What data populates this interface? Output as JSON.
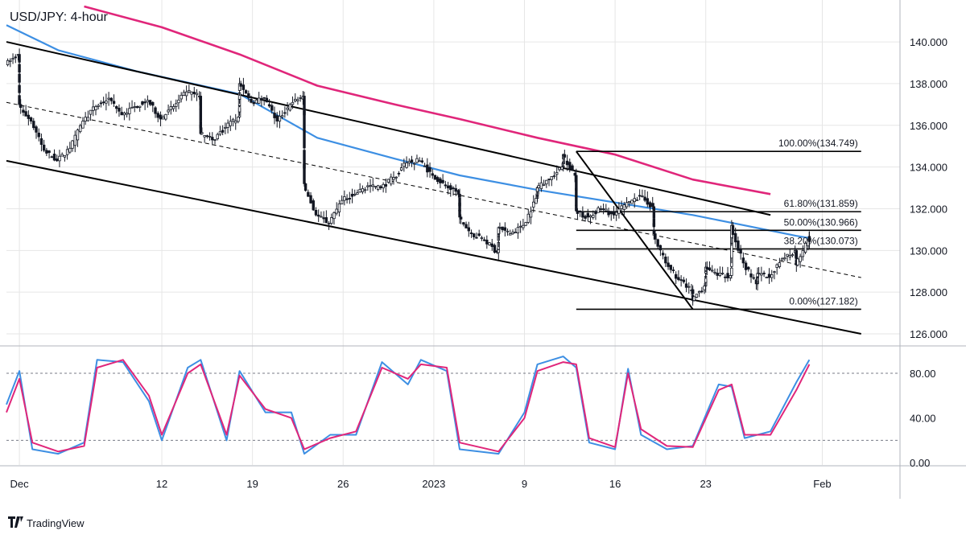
{
  "header": {
    "title": "USD/JPY: 4-hour"
  },
  "branding": {
    "name": "TradingView",
    "logo_icon": "tradingview-logo-icon"
  },
  "colors": {
    "candle": "#131722",
    "ma_fast": "#3d8fe3",
    "ma_slow": "#e0267a",
    "stoch_k": "#3d8fe3",
    "stoch_d": "#e0267a",
    "channel": "#000000",
    "grid": "#e6e6e6"
  },
  "chart_data": [
    {
      "type": "candlestick",
      "title": "USD/JPY: 4-hour",
      "x_axis": {
        "tick_labels": [
          "Dec",
          "12",
          "19",
          "26",
          "2023",
          "9",
          "16",
          "23",
          "Feb"
        ],
        "tick_dates": [
          "2022-12-01",
          "2022-12-12",
          "2022-12-19",
          "2022-12-26",
          "2023-01-02",
          "2023-01-09",
          "2023-01-16",
          "2023-01-23",
          "2023-02-01"
        ],
        "range": [
          "2022-11-30",
          "2023-02-07"
        ]
      },
      "y_axis": {
        "tick_labels": [
          "126.000",
          "128.000",
          "130.000",
          "132.000",
          "134.000",
          "136.000",
          "138.000",
          "140.000"
        ],
        "ylim": [
          125.5,
          141.7
        ]
      },
      "price_path": [
        [
          "2022-11-30",
          138.9
        ],
        [
          "2022-12-01",
          139.4
        ],
        [
          "2022-12-01",
          137.0
        ],
        [
          "2022-12-02",
          136.2
        ],
        [
          "2022-12-03",
          134.8
        ],
        [
          "2022-12-04",
          134.3
        ],
        [
          "2022-12-05",
          134.9
        ],
        [
          "2022-12-06",
          136.2
        ],
        [
          "2022-12-07",
          136.9
        ],
        [
          "2022-12-08",
          137.3
        ],
        [
          "2022-12-09",
          136.5
        ],
        [
          "2022-12-10",
          136.9
        ],
        [
          "2022-12-11",
          137.2
        ],
        [
          "2022-12-12",
          136.3
        ],
        [
          "2022-12-13",
          136.9
        ],
        [
          "2022-12-14",
          137.6
        ],
        [
          "2022-12-15",
          137.4
        ],
        [
          "2022-12-15",
          135.6
        ],
        [
          "2022-12-16",
          135.3
        ],
        [
          "2022-12-17",
          135.9
        ],
        [
          "2022-12-18",
          136.4
        ],
        [
          "2022-12-18",
          138.0
        ],
        [
          "2022-12-19",
          137.1
        ],
        [
          "2022-12-20",
          137.3
        ],
        [
          "2022-12-21",
          136.2
        ],
        [
          "2022-12-22",
          137.0
        ],
        [
          "2022-12-23",
          137.4
        ],
        [
          "2022-12-23",
          133.2
        ],
        [
          "2022-12-24",
          131.7
        ],
        [
          "2022-12-25",
          131.3
        ],
        [
          "2022-12-26",
          132.4
        ],
        [
          "2022-12-27",
          132.7
        ],
        [
          "2022-12-28",
          133.1
        ],
        [
          "2022-12-29",
          133.0
        ],
        [
          "2022-12-30",
          133.5
        ],
        [
          "2022-12-31",
          134.2
        ],
        [
          "2023-01-01",
          134.3
        ],
        [
          "2023-01-02",
          133.6
        ],
        [
          "2023-01-03",
          133.1
        ],
        [
          "2023-01-04",
          132.7
        ],
        [
          "2023-01-04",
          131.6
        ],
        [
          "2023-01-05",
          130.8
        ],
        [
          "2023-01-06",
          130.5
        ],
        [
          "2023-01-07",
          129.9
        ],
        [
          "2023-01-07",
          131.1
        ],
        [
          "2023-01-08",
          130.8
        ],
        [
          "2023-01-09",
          131.2
        ],
        [
          "2023-01-10",
          132.5
        ],
        [
          "2023-01-10",
          133.0
        ],
        [
          "2023-01-11",
          133.4
        ],
        [
          "2023-01-12",
          134.0
        ],
        [
          "2023-01-12",
          134.6
        ],
        [
          "2023-01-13",
          133.6
        ],
        [
          "2023-01-13",
          131.9
        ],
        [
          "2023-01-14",
          131.6
        ],
        [
          "2023-01-15",
          132.0
        ],
        [
          "2023-01-16",
          131.7
        ],
        [
          "2023-01-17",
          132.3
        ],
        [
          "2023-01-18",
          132.6
        ],
        [
          "2023-01-19",
          132.1
        ],
        [
          "2023-01-19",
          130.8
        ],
        [
          "2023-01-20",
          129.4
        ],
        [
          "2023-01-21",
          128.6
        ],
        [
          "2023-01-22",
          128.1
        ],
        [
          "2023-01-22",
          127.6
        ],
        [
          "2023-01-23",
          128.3
        ],
        [
          "2023-01-23",
          129.2
        ],
        [
          "2023-01-24",
          128.8
        ],
        [
          "2023-01-25",
          128.8
        ],
        [
          "2023-01-25",
          131.2
        ],
        [
          "2023-01-26",
          129.4
        ],
        [
          "2023-01-27",
          128.4
        ],
        [
          "2023-01-27",
          128.9
        ],
        [
          "2023-01-28",
          128.7
        ],
        [
          "2023-01-29",
          129.6
        ],
        [
          "2023-01-30",
          130.0
        ],
        [
          "2023-01-30",
          129.3
        ],
        [
          "2023-01-31",
          130.5
        ],
        [
          "2023-01-31",
          130.6
        ]
      ],
      "moving_averages": [
        {
          "color": "#3d8fe3",
          "points": [
            [
              "2022-11-30",
              140.8
            ],
            [
              "2022-12-04",
              139.6
            ],
            [
              "2022-12-10",
              138.6
            ],
            [
              "2022-12-18",
              137.5
            ],
            [
              "2022-12-24",
              135.4
            ],
            [
              "2022-12-30",
              134.4
            ],
            [
              "2023-01-04",
              133.6
            ],
            [
              "2023-01-10",
              132.9
            ],
            [
              "2023-01-16",
              132.3
            ],
            [
              "2023-01-22",
              131.7
            ],
            [
              "2023-01-26",
              131.2
            ],
            [
              "2023-01-30",
              130.7
            ],
            [
              "2023-01-31",
              130.6
            ]
          ]
        },
        {
          "color": "#e0267a",
          "points": [
            [
              "2022-12-06",
              141.7
            ],
            [
              "2022-12-12",
              140.7
            ],
            [
              "2022-12-18",
              139.4
            ],
            [
              "2022-12-24",
              137.9
            ],
            [
              "2022-12-30",
              137.0
            ],
            [
              "2023-01-04",
              136.3
            ],
            [
              "2023-01-10",
              135.4
            ],
            [
              "2023-01-16",
              134.6
            ],
            [
              "2023-01-22",
              133.4
            ],
            [
              "2023-01-28",
              132.7
            ]
          ]
        }
      ],
      "trend_lines": [
        {
          "style": "solid",
          "from": [
            "2022-11-30",
            140.0
          ],
          "to": [
            "2023-01-28",
            131.7
          ]
        },
        {
          "style": "solid",
          "from": [
            "2022-11-30",
            134.3
          ],
          "to": [
            "2023-02-04",
            126.0
          ]
        },
        {
          "style": "dashed",
          "from": [
            "2022-11-30",
            137.1
          ],
          "to": [
            "2023-02-04",
            128.7
          ]
        },
        {
          "style": "solid",
          "from": [
            "2023-01-13",
            134.749
          ],
          "to": [
            "2023-01-22",
            127.182
          ]
        }
      ],
      "fibonacci": {
        "start_date": "2023-01-13",
        "end_date": "2023-02-04",
        "levels": [
          {
            "price": 134.749,
            "label": "100.00%(134.749)"
          },
          {
            "price": 131.859,
            "label": "61.80%(131.859)"
          },
          {
            "price": 130.966,
            "label": "50.00%(130.966)"
          },
          {
            "price": 130.073,
            "label": "38.20%(130.073)"
          },
          {
            "price": 127.182,
            "label": "0.00%(127.182)"
          }
        ]
      }
    },
    {
      "type": "line",
      "x_range": [
        "2022-11-30",
        "2023-02-07"
      ],
      "y_axis": {
        "tick_labels": [
          "0.00",
          "40.00",
          "80.00"
        ],
        "ylim": [
          -2,
          103
        ]
      },
      "reference_lines": [
        20,
        80
      ],
      "series": [
        {
          "color": "#3d8fe3",
          "points": [
            [
              "2022-11-30",
              52
            ],
            [
              "2022-12-01",
              82
            ],
            [
              "2022-12-02",
              12
            ],
            [
              "2022-12-04",
              8
            ],
            [
              "2022-12-06",
              18
            ],
            [
              "2022-12-07",
              92
            ],
            [
              "2022-12-09",
              90
            ],
            [
              "2022-12-11",
              55
            ],
            [
              "2022-12-12",
              20
            ],
            [
              "2022-12-14",
              85
            ],
            [
              "2022-12-15",
              92
            ],
            [
              "2022-12-17",
              20
            ],
            [
              "2022-12-18",
              82
            ],
            [
              "2022-12-20",
              45
            ],
            [
              "2022-12-22",
              45
            ],
            [
              "2022-12-23",
              8
            ],
            [
              "2022-12-25",
              25
            ],
            [
              "2022-12-27",
              25
            ],
            [
              "2022-12-29",
              90
            ],
            [
              "2022-12-31",
              70
            ],
            [
              "2023-01-01",
              92
            ],
            [
              "2023-01-03",
              82
            ],
            [
              "2023-01-04",
              12
            ],
            [
              "2023-01-07",
              8
            ],
            [
              "2023-01-09",
              45
            ],
            [
              "2023-01-10",
              88
            ],
            [
              "2023-01-12",
              95
            ],
            [
              "2023-01-13",
              85
            ],
            [
              "2023-01-14",
              18
            ],
            [
              "2023-01-16",
              12
            ],
            [
              "2023-01-17",
              84
            ],
            [
              "2023-01-18",
              25
            ],
            [
              "2023-01-20",
              12
            ],
            [
              "2023-01-22",
              15
            ],
            [
              "2023-01-24",
              70
            ],
            [
              "2023-01-25",
              68
            ],
            [
              "2023-01-26",
              22
            ],
            [
              "2023-01-28",
              28
            ],
            [
              "2023-01-30",
              72
            ],
            [
              "2023-01-31",
              92
            ]
          ]
        },
        {
          "color": "#e0267a",
          "points": [
            [
              "2022-11-30",
              45
            ],
            [
              "2022-12-01",
              75
            ],
            [
              "2022-12-02",
              18
            ],
            [
              "2022-12-04",
              10
            ],
            [
              "2022-12-06",
              15
            ],
            [
              "2022-12-07",
              85
            ],
            [
              "2022-12-09",
              92
            ],
            [
              "2022-12-11",
              60
            ],
            [
              "2022-12-12",
              25
            ],
            [
              "2022-12-14",
              80
            ],
            [
              "2022-12-15",
              88
            ],
            [
              "2022-12-17",
              25
            ],
            [
              "2022-12-18",
              78
            ],
            [
              "2022-12-20",
              48
            ],
            [
              "2022-12-22",
              40
            ],
            [
              "2022-12-23",
              12
            ],
            [
              "2022-12-25",
              22
            ],
            [
              "2022-12-27",
              28
            ],
            [
              "2022-12-29",
              85
            ],
            [
              "2022-12-31",
              75
            ],
            [
              "2023-01-01",
              88
            ],
            [
              "2023-01-03",
              85
            ],
            [
              "2023-01-04",
              18
            ],
            [
              "2023-01-07",
              10
            ],
            [
              "2023-01-09",
              40
            ],
            [
              "2023-01-10",
              82
            ],
            [
              "2023-01-12",
              90
            ],
            [
              "2023-01-13",
              88
            ],
            [
              "2023-01-14",
              22
            ],
            [
              "2023-01-16",
              14
            ],
            [
              "2023-01-17",
              80
            ],
            [
              "2023-01-18",
              30
            ],
            [
              "2023-01-20",
              15
            ],
            [
              "2023-01-22",
              14
            ],
            [
              "2023-01-24",
              65
            ],
            [
              "2023-01-25",
              70
            ],
            [
              "2023-01-26",
              25
            ],
            [
              "2023-01-28",
              25
            ],
            [
              "2023-01-30",
              65
            ],
            [
              "2023-01-31",
              88
            ]
          ]
        }
      ]
    }
  ]
}
